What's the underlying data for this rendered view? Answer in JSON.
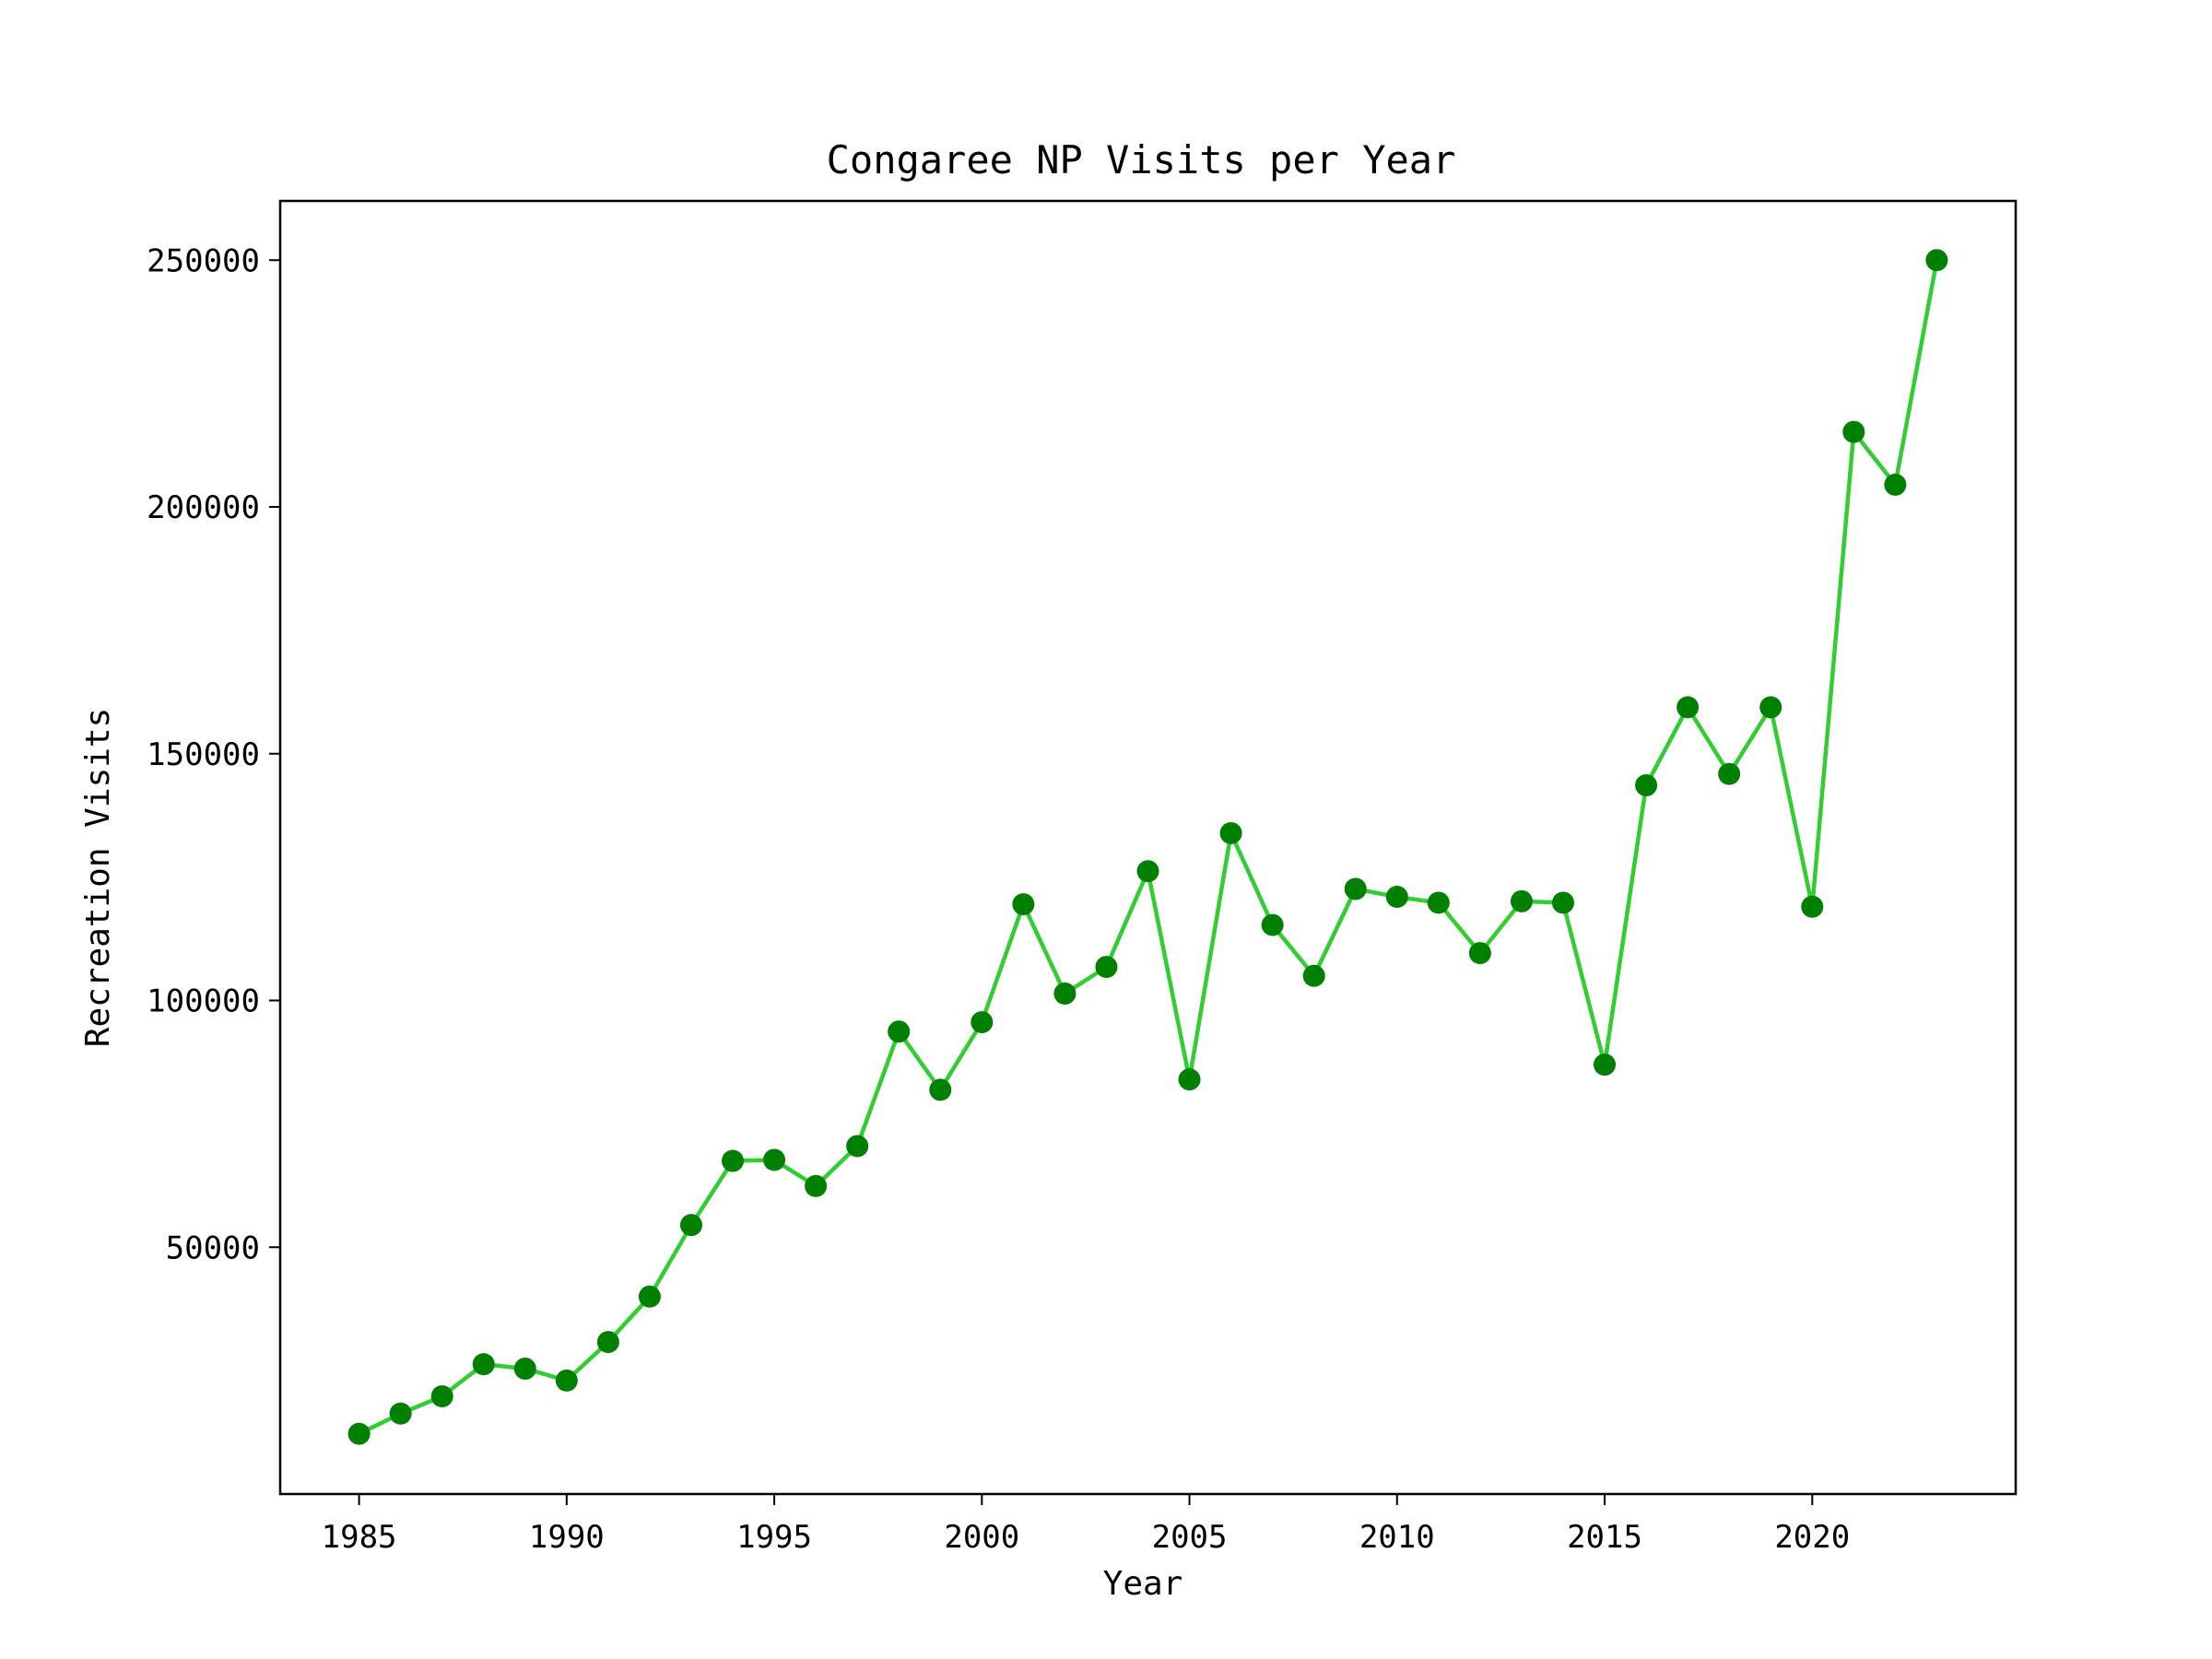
{
  "chart_data": {
    "type": "line",
    "title": "Congaree NP Visits per Year",
    "xlabel": "Year",
    "ylabel": "Recreation Visits",
    "xlim": [
      1983.1,
      2024.9
    ],
    "ylim": [
      0,
      262000
    ],
    "x_ticks": [
      1985,
      1990,
      1995,
      2000,
      2005,
      2010,
      2015,
      2020
    ],
    "y_ticks": [
      50000,
      100000,
      150000,
      200000,
      250000
    ],
    "grid": false,
    "legend": "none",
    "line_color": "#32CD32",
    "marker_color": "#008000",
    "series": [
      {
        "x": [
          1985,
          1986,
          1987,
          1988,
          1989,
          1990,
          1991,
          1992,
          1993,
          1994,
          1995,
          1996,
          1997,
          1998,
          1999,
          2000,
          2001,
          2002,
          2003,
          2004,
          2005,
          2006,
          2007,
          2008,
          2009,
          2010,
          2011,
          2012,
          2013,
          2014,
          2015,
          2016,
          2017,
          2018,
          2019,
          2020,
          2021,
          2022,
          2023
        ],
        "values": [
          12200,
          16300,
          19800,
          26300,
          25400,
          23000,
          30800,
          40000,
          54500,
          67500,
          67700,
          62400,
          70500,
          93700,
          81900,
          95600,
          119500,
          101400,
          106800,
          126200,
          84000,
          133900,
          115300,
          105000,
          122600,
          121000,
          119800,
          109600,
          120100,
          119800,
          87000,
          143600,
          159400,
          145900,
          159400,
          119000,
          215200,
          204500,
          250000
        ]
      }
    ]
  }
}
